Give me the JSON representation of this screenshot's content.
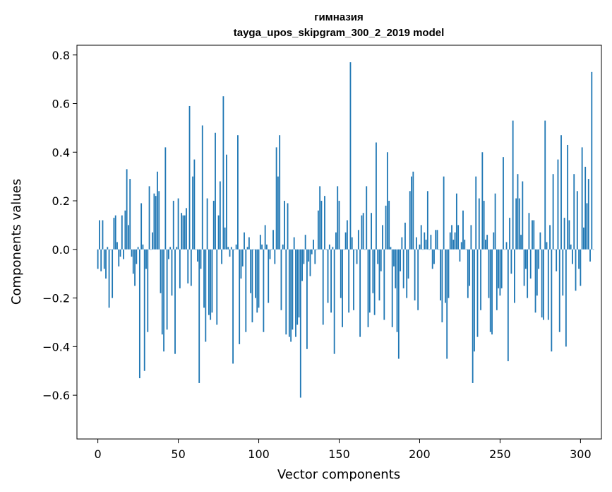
{
  "chart_data": {
    "type": "bar",
    "title": "гимназия",
    "subtitle": "tayga_upos_skipgram_300_2_2019 model",
    "xlabel": "Vector components",
    "ylabel": "Components values",
    "xlim": [
      -13,
      313
    ],
    "ylim": [
      -0.78,
      0.84
    ],
    "x_ticks": [
      0,
      50,
      100,
      150,
      200,
      250,
      300
    ],
    "x_tick_labels": [
      "0",
      "50",
      "100",
      "150",
      "200",
      "250",
      "300"
    ],
    "y_ticks": [
      0.8,
      0.6,
      0.4,
      0.2,
      0.0,
      -0.2,
      -0.4,
      -0.6
    ],
    "y_tick_labels": [
      "0.8",
      "0.6",
      "0.4",
      "0.2",
      "0.0",
      "−0.2",
      "−0.4",
      "−0.6"
    ],
    "grid": false,
    "bar_color": "#1f77b4",
    "values": [
      -0.08,
      0.12,
      -0.09,
      0.12,
      -0.08,
      -0.12,
      0.01,
      -0.24,
      0.0,
      -0.2,
      0.13,
      0.14,
      0.03,
      -0.07,
      -0.03,
      0.14,
      -0.04,
      0.16,
      0.33,
      0.1,
      0.29,
      -0.03,
      -0.1,
      -0.15,
      -0.06,
      0.01,
      -0.53,
      0.19,
      0.02,
      -0.5,
      -0.08,
      -0.34,
      0.26,
      0.0,
      0.07,
      0.23,
      0.22,
      0.32,
      0.24,
      -0.18,
      -0.35,
      -0.42,
      0.42,
      -0.33,
      -0.04,
      0.01,
      -0.19,
      0.2,
      -0.43,
      0.01,
      0.21,
      -0.16,
      0.15,
      0.14,
      0.14,
      0.17,
      -0.14,
      0.59,
      -0.15,
      0.3,
      0.37,
      0.0,
      -0.05,
      -0.55,
      -0.08,
      0.51,
      -0.24,
      -0.38,
      0.21,
      -0.27,
      -0.29,
      -0.26,
      0.2,
      0.48,
      -0.31,
      0.14,
      0.28,
      -0.06,
      0.63,
      0.09,
      0.39,
      0.01,
      -0.03,
      0.01,
      -0.47,
      0.0,
      0.02,
      0.47,
      -0.39,
      -0.12,
      -0.07,
      0.07,
      -0.34,
      0.01,
      0.05,
      -0.18,
      -0.3,
      0.0,
      -0.2,
      -0.26,
      -0.24,
      0.06,
      0.02,
      -0.34,
      0.1,
      0.02,
      -0.22,
      -0.04,
      0.0,
      0.08,
      -0.06,
      0.42,
      0.3,
      0.47,
      -0.25,
      0.02,
      0.2,
      -0.35,
      0.19,
      -0.36,
      -0.38,
      -0.33,
      0.05,
      -0.36,
      -0.31,
      -0.28,
      -0.61,
      -0.13,
      -0.06,
      0.06,
      -0.41,
      -0.05,
      -0.11,
      -0.02,
      0.04,
      -0.06,
      0.0,
      0.16,
      0.26,
      0.2,
      -0.31,
      0.22,
      0.0,
      -0.22,
      0.02,
      -0.26,
      0.01,
      -0.43,
      0.07,
      0.26,
      0.2,
      -0.2,
      -0.32,
      0.0,
      0.07,
      0.12,
      -0.26,
      0.77,
      0.05,
      -0.25,
      0.0,
      -0.06,
      0.08,
      -0.36,
      0.14,
      0.15,
      0.0,
      0.26,
      -0.32,
      -0.26,
      0.15,
      -0.18,
      -0.27,
      0.44,
      -0.06,
      -0.21,
      -0.09,
      0.1,
      -0.29,
      0.18,
      0.4,
      0.2,
      0.01,
      -0.32,
      -0.07,
      -0.16,
      -0.34,
      -0.45,
      -0.09,
      0.05,
      -0.16,
      0.11,
      -0.2,
      -0.12,
      0.24,
      0.3,
      0.32,
      -0.21,
      0.05,
      -0.25,
      0.02,
      0.1,
      0.0,
      0.07,
      0.04,
      0.24,
      0.0,
      0.06,
      -0.08,
      -0.06,
      0.08,
      0.08,
      0.0,
      -0.21,
      -0.3,
      0.3,
      -0.22,
      -0.45,
      -0.2,
      0.07,
      0.1,
      0.04,
      0.07,
      0.23,
      0.1,
      -0.05,
      0.03,
      0.16,
      0.04,
      0.0,
      -0.2,
      -0.15,
      0.1,
      -0.55,
      -0.42,
      0.3,
      -0.36,
      0.21,
      -0.25,
      0.4,
      0.2,
      0.04,
      0.06,
      -0.2,
      -0.34,
      -0.35,
      0.07,
      0.23,
      -0.25,
      -0.16,
      -0.19,
      -0.16,
      0.38,
      0.0,
      0.03,
      -0.46,
      0.13,
      -0.1,
      0.53,
      -0.22,
      0.21,
      0.31,
      0.21,
      0.06,
      0.28,
      -0.15,
      -0.08,
      -0.2,
      0.15,
      -0.12,
      0.12,
      0.12,
      -0.26,
      -0.19,
      -0.08,
      0.07,
      -0.28,
      -0.29,
      0.53,
      0.03,
      -0.29,
      0.1,
      -0.42,
      0.31,
      0.0,
      -0.09,
      0.37,
      -0.34,
      0.47,
      -0.19,
      0.13,
      -0.4,
      0.43,
      0.12,
      0.02,
      -0.06,
      0.31,
      -0.17,
      0.24,
      -0.08,
      -0.15,
      0.42,
      0.09,
      0.34,
      0.19,
      0.29,
      -0.05,
      0.73,
      0.0
    ]
  }
}
